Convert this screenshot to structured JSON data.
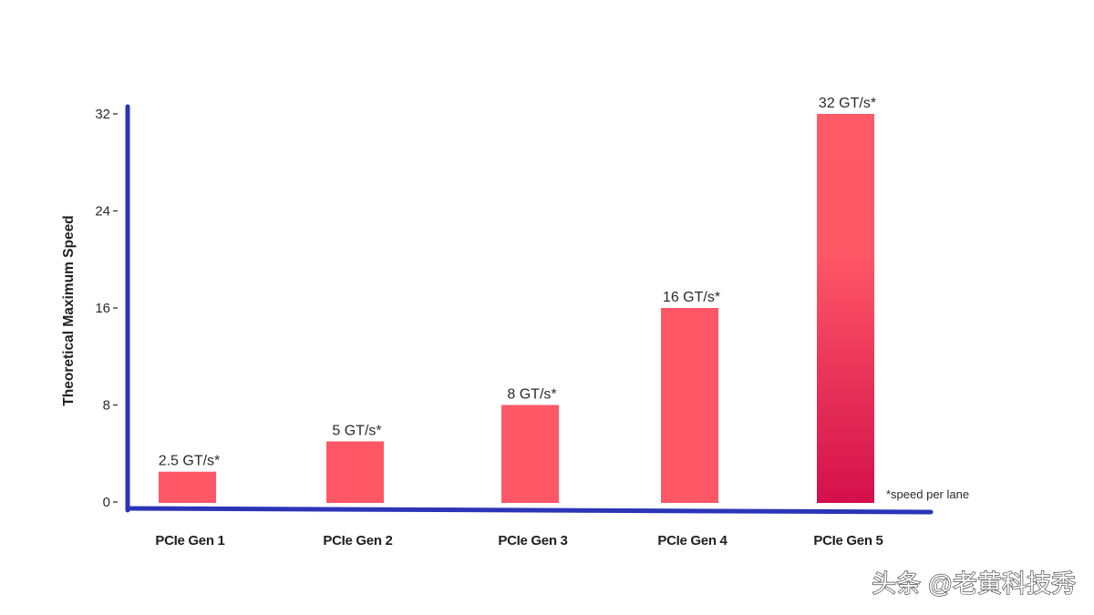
{
  "chart_data": {
    "type": "bar",
    "categories": [
      "PCIe Gen 1",
      "PCIe Gen 2",
      "PCIe Gen 3",
      "PCIe Gen 4",
      "PCIe Gen 5"
    ],
    "values": [
      2.5,
      5,
      8,
      16,
      32
    ],
    "data_labels": [
      "2.5 GT/s*",
      "5 GT/s*",
      "8 GT/s*",
      "16 GT/s*",
      "32 GT/s*"
    ],
    "ylabel": "Theoretical Maximum Speed",
    "ylim": [
      0,
      32
    ],
    "yticks": [
      0,
      8,
      16,
      24,
      32
    ],
    "ytick_labels": [
      "0",
      "8",
      "16",
      "24",
      "32"
    ],
    "note": "*speed per lane",
    "grid": false,
    "colors": {
      "bar": "#ff5766",
      "highlight_top": "#ff5a68",
      "highlight_mid": "#ff5867",
      "highlight_bottom": "#d4104c",
      "axis": "#2b35b8",
      "tick": "#333333"
    }
  },
  "watermark": {
    "text": "头条 @老黄科技秀"
  }
}
